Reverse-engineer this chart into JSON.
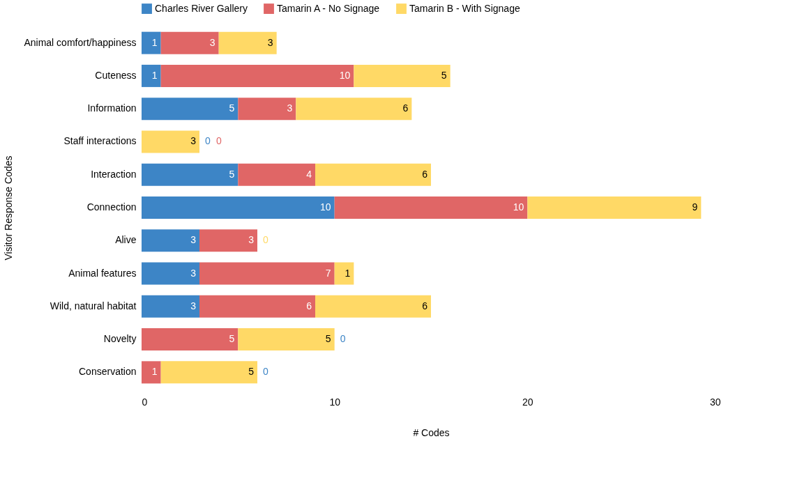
{
  "chart_data": {
    "type": "bar",
    "orientation": "horizontal",
    "stacked": true,
    "xlabel": "# Codes",
    "ylabel": "Visitor Response Codes",
    "categories": [
      "Animal comfort/happiness",
      "Cuteness",
      "Information",
      "Staff interactions",
      "Interaction",
      "Connection",
      "Alive",
      "Animal features",
      "Wild, natural habitat",
      "Novelty",
      "Conservation"
    ],
    "series": [
      {
        "name": "Charles River Gallery",
        "color": "#3d85c6",
        "values": [
          1,
          1,
          5,
          0,
          5,
          10,
          3,
          3,
          3,
          0,
          0
        ]
      },
      {
        "name": "Tamarin A - No Signage",
        "color": "#e06666",
        "values": [
          3,
          10,
          3,
          0,
          4,
          10,
          3,
          7,
          6,
          5,
          1
        ]
      },
      {
        "name": "Tamarin B - With Signage",
        "color": "#ffd966",
        "values": [
          3,
          5,
          6,
          3,
          6,
          9,
          0,
          1,
          6,
          5,
          5
        ]
      }
    ],
    "xlim": [
      0,
      30
    ],
    "xticks": [
      0,
      10,
      20,
      30
    ],
    "grid": false,
    "legend": "top",
    "data_labels": true
  }
}
